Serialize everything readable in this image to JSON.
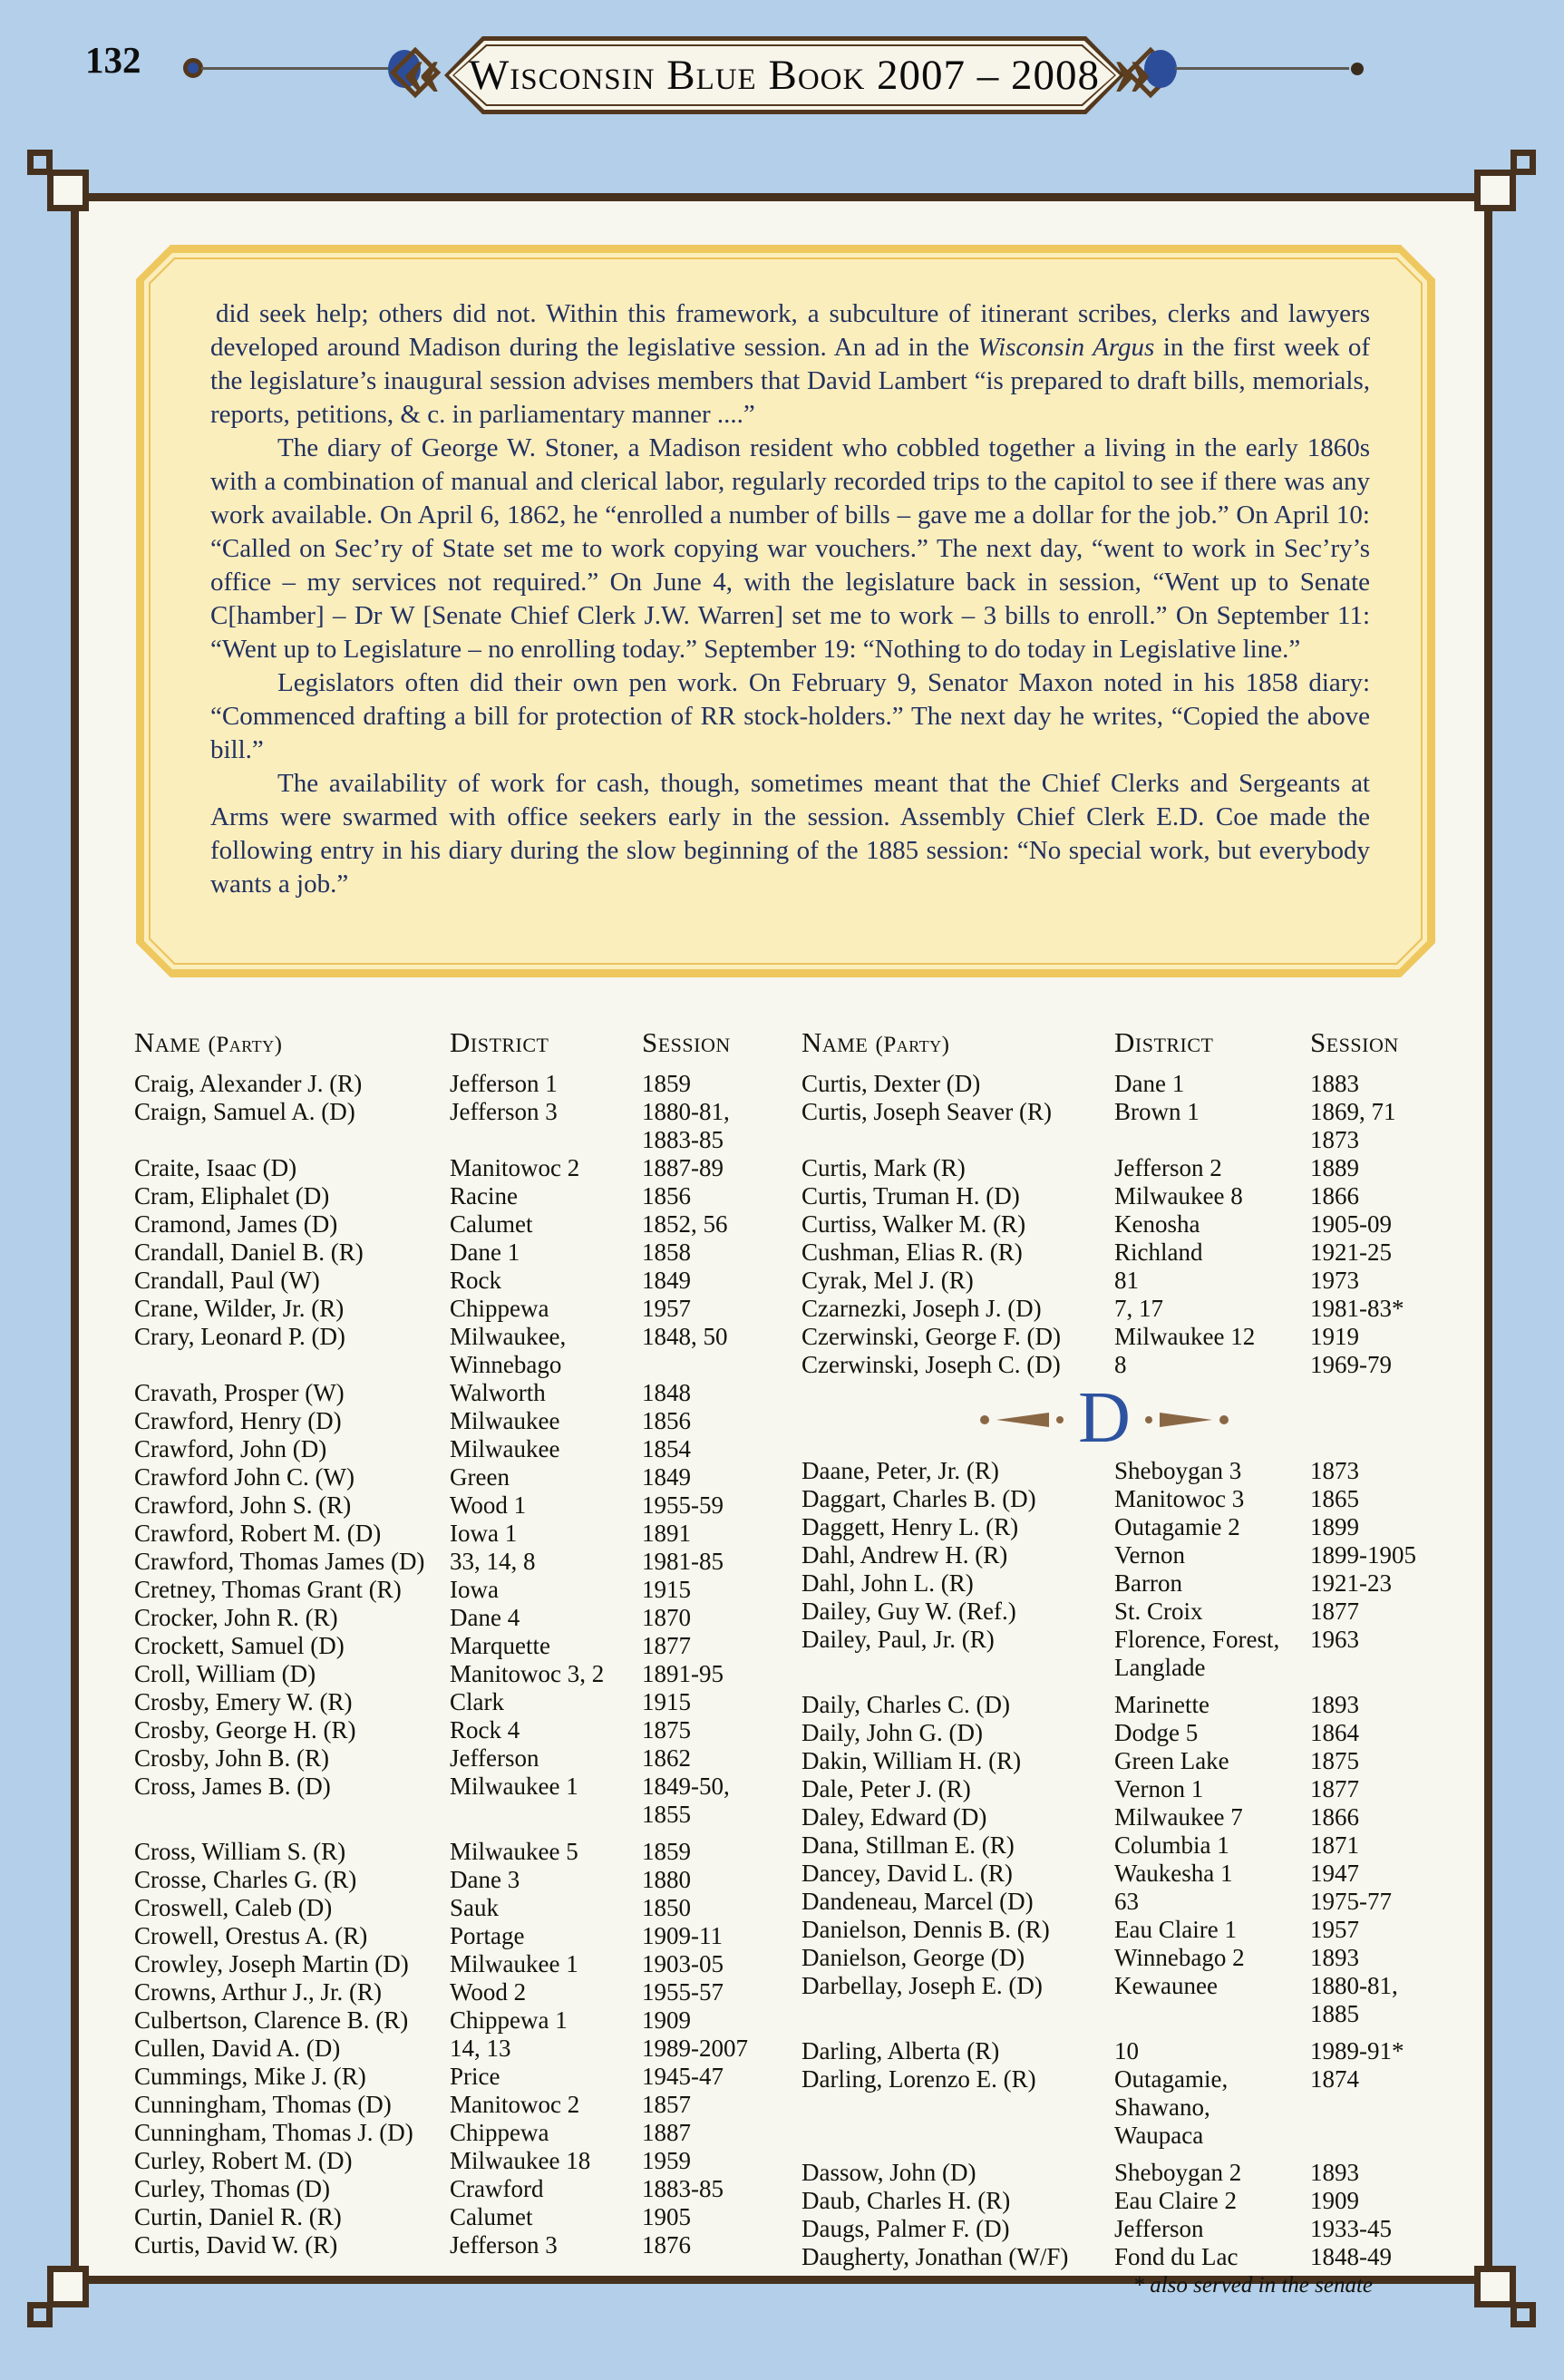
{
  "page": {
    "number": "132"
  },
  "header": {
    "title": "Wisconsin Blue Book 2007 – 2008",
    "chevron_left": "«",
    "chevron_right": "»"
  },
  "colors": {
    "page_bg": "#b3cfe9",
    "frame_brown": "#46311e",
    "box_border_gold": "#eec85e",
    "box_fill": "#fbeebd",
    "intro_text_navy": "#22315f",
    "ornament_blue": "#2c4d9a",
    "divider_letter_blue": "#2d53a0"
  },
  "intro": {
    "paragraphs": [
      {
        "indent": false,
        "segments": [
          {
            "t": " did seek help; others did not.  Within this framework, a subculture of itinerant scribes, clerks and lawyers developed around Madison during the legislative session.  An ad in the "
          },
          {
            "t": "Wisconsin Argus",
            "i": true
          },
          {
            "t": " in the first week of the legislature’s inaugural session advises members that David Lambert “is prepared to draft bills, memorials, reports, petitions, & c. in parliamentary manner ....”"
          }
        ]
      },
      {
        "indent": true,
        "segments": [
          {
            "t": "The diary of George W. Stoner, a Madison resident who cobbled together a living in the early 1860s with a combination of manual and clerical labor, regularly recorded trips to the capitol to see if there was any work available.  On April 6, 1862, he “enrolled a number of bills – gave me a dollar for the job.”  On April 10: “Called on Sec’ry of State set me to work copying war vouchers.”  The next day, “went to work in Sec’ry’s office – my services not required.”  On June 4, with the legislature back in session, “Went up to Senate C[hamber] – Dr W [Senate Chief Clerk J.W. Warren] set me to work – 3 bills to enroll.”  On September 11: “Went up to Legislature – no enrolling today.”  September 19: “Nothing to do today in Legislative line.”"
          }
        ]
      },
      {
        "indent": true,
        "segments": [
          {
            "t": "Legislators often did their own pen work.  On February 9, Senator Maxon noted in his 1858 diary: “Commenced drafting a bill for protection of RR stock-holders.”  The next day he writes, “Copied the above bill.”"
          }
        ]
      },
      {
        "indent": true,
        "segments": [
          {
            "t": "The availability of work for cash, though, sometimes meant that the Chief Clerks and Sergeants at Arms were swarmed with office seekers early in the session.  Assembly Chief Clerk E.D. Coe made the following entry in his diary during the slow beginning of the 1885 session: “No special work, but everybody wants a job.”"
          }
        ]
      }
    ]
  },
  "table": {
    "headers": {
      "name": "Name",
      "party": "(Party)",
      "district": "District",
      "session": "Session"
    },
    "left_rows": [
      {
        "name": "Craig, Alexander J. (R)",
        "district": "Jefferson 1",
        "session": "1859"
      },
      {
        "name": "Craign, Samuel A. (D)",
        "district": "Jefferson 3",
        "session": "1880-81,\n1883-85"
      },
      {
        "name": "Craite, Isaac (D)",
        "district": "Manitowoc 2",
        "session": "1887-89"
      },
      {
        "name": "Cram, Eliphalet (D)",
        "district": "Racine",
        "session": "1856"
      },
      {
        "name": "Cramond, James (D)",
        "district": "Calumet",
        "session": "1852, 56"
      },
      {
        "name": "Crandall, Daniel B. (R)",
        "district": "Dane 1",
        "session": "1858"
      },
      {
        "name": "Crandall, Paul (W)",
        "district": "Rock",
        "session": "1849"
      },
      {
        "name": "Crane, Wilder, Jr. (R)",
        "district": "Chippewa",
        "session": "1957"
      },
      {
        "name": "Crary, Leonard P. (D)",
        "district": "Milwaukee,\nWinnebago",
        "session": "1848, 50"
      },
      {
        "name": "Cravath, Prosper (W)",
        "district": "Walworth",
        "session": "1848"
      },
      {
        "name": "Crawford, Henry (D)",
        "district": "Milwaukee",
        "session": "1856"
      },
      {
        "name": "Crawford, John (D)",
        "district": "Milwaukee",
        "session": "1854"
      },
      {
        "name": "Crawford John C. (W)",
        "district": "Green",
        "session": "1849"
      },
      {
        "name": "Crawford, John S. (R)",
        "district": "Wood 1",
        "session": "1955-59"
      },
      {
        "name": "Crawford, Robert M. (D)",
        "district": "Iowa 1",
        "session": "1891"
      },
      {
        "name": "Crawford, Thomas James (D)",
        "district": "33, 14, 8",
        "session": "1981-85"
      },
      {
        "name": "Cretney, Thomas Grant (R)",
        "district": "Iowa",
        "session": "1915"
      },
      {
        "name": "Crocker, John R. (R)",
        "district": "Dane 4",
        "session": "1870"
      },
      {
        "name": "Crockett, Samuel (D)",
        "district": "Marquette",
        "session": "1877"
      },
      {
        "name": "Croll, William (D)",
        "district": "Manitowoc 3, 2",
        "session": "1891-95"
      },
      {
        "name": "Crosby, Emery W. (R)",
        "district": "Clark",
        "session": "1915"
      },
      {
        "name": "Crosby, George H. (R)",
        "district": "Rock 4",
        "session": "1875"
      },
      {
        "name": "Crosby, John B. (R)",
        "district": "Jefferson",
        "session": "1862"
      },
      {
        "name": "Cross, James B. (D)",
        "district": "Milwaukee 1",
        "session": "1849-50,\n1855"
      },
      {
        "name": "Cross, William S. (R)",
        "district": "Milwaukee 5",
        "session": "1859",
        "gap": true
      },
      {
        "name": "Crosse, Charles G. (R)",
        "district": "Dane 3",
        "session": "1880"
      },
      {
        "name": "Croswell, Caleb (D)",
        "district": "Sauk",
        "session": "1850"
      },
      {
        "name": "Crowell, Orestus A. (R)",
        "district": "Portage",
        "session": "1909-11"
      },
      {
        "name": "Crowley, Joseph Martin (D)",
        "district": "Milwaukee 1",
        "session": "1903-05"
      },
      {
        "name": "Crowns, Arthur J., Jr. (R)",
        "district": "Wood 2",
        "session": "1955-57"
      },
      {
        "name": "Culbertson, Clarence B. (R)",
        "district": "Chippewa 1",
        "session": "1909"
      },
      {
        "name": "Cullen, David A. (D)",
        "district": "14, 13",
        "session": "1989-2007"
      },
      {
        "name": "Cummings, Mike J. (R)",
        "district": "Price",
        "session": "1945-47"
      },
      {
        "name": "Cunningham, Thomas (D)",
        "district": "Manitowoc 2",
        "session": "1857"
      },
      {
        "name": "Cunningham, Thomas J. (D)",
        "district": "Chippewa",
        "session": "1887"
      },
      {
        "name": "Curley, Robert M. (D)",
        "district": "Milwaukee 18",
        "session": "1959"
      },
      {
        "name": "Curley, Thomas (D)",
        "district": "Crawford",
        "session": "1883-85"
      },
      {
        "name": "Curtin, Daniel R. (R)",
        "district": "Calumet",
        "session": "1905"
      },
      {
        "name": "Curtis, David W. (R)",
        "district": "Jefferson 3",
        "session": "1876"
      }
    ],
    "right_rows": [
      {
        "name": "Curtis, Dexter (D)",
        "district": "Dane 1",
        "session": "1883"
      },
      {
        "name": "Curtis, Joseph Seaver (R)",
        "district": "Brown 1",
        "session": "1869, 71\n1873"
      },
      {
        "name": "Curtis, Mark (R)",
        "district": "Jefferson 2",
        "session": "1889"
      },
      {
        "name": "Curtis, Truman H. (D)",
        "district": "Milwaukee 8",
        "session": "1866"
      },
      {
        "name": "Curtiss, Walker M. (R)",
        "district": "Kenosha",
        "session": "1905-09"
      },
      {
        "name": "Cushman, Elias R. (R)",
        "district": "Richland",
        "session": "1921-25"
      },
      {
        "name": "Cyrak, Mel J. (R)",
        "district": "81",
        "session": "1973"
      },
      {
        "name": "Czarnezki, Joseph J. (D)",
        "district": "7, 17",
        "session": "1981-83*"
      },
      {
        "name": "Czerwinski, George F. (D)",
        "district": "Milwaukee 12",
        "session": "1919"
      },
      {
        "name": "Czerwinski, Joseph C. (D)",
        "district": "8",
        "session": "1969-79"
      },
      {
        "divider": true,
        "letter": "D"
      },
      {
        "name": "Daane, Peter, Jr. (R)",
        "district": "Sheboygan 3",
        "session": "1873"
      },
      {
        "name": "Daggart, Charles B. (D)",
        "district": "Manitowoc 3",
        "session": "1865"
      },
      {
        "name": "Daggett, Henry L. (R)",
        "district": "Outagamie 2",
        "session": "1899"
      },
      {
        "name": "Dahl, Andrew H. (R)",
        "district": "Vernon",
        "session": "1899-1905"
      },
      {
        "name": "Dahl, John L. (R)",
        "district": "Barron",
        "session": "1921-23"
      },
      {
        "name": "Dailey, Guy W. (Ref.)",
        "district": "St. Croix",
        "session": "1877"
      },
      {
        "name": "Dailey, Paul, Jr. (R)",
        "district": "Florence, Forest,\nLanglade",
        "session": "1963"
      },
      {
        "name": "Daily, Charles C. (D)",
        "district": "Marinette",
        "session": "1893",
        "gap": true
      },
      {
        "name": "Daily, John G. (D)",
        "district": "Dodge 5",
        "session": "1864"
      },
      {
        "name": "Dakin, William H. (R)",
        "district": "Green Lake",
        "session": "1875"
      },
      {
        "name": "Dale, Peter J. (R)",
        "district": "Vernon 1",
        "session": "1877"
      },
      {
        "name": "Daley, Edward (D)",
        "district": "Milwaukee 7",
        "session": "1866"
      },
      {
        "name": "Dana, Stillman E. (R)",
        "district": "Columbia 1",
        "session": "1871"
      },
      {
        "name": "Dancey, David L. (R)",
        "district": "Waukesha 1",
        "session": "1947"
      },
      {
        "name": "Dandeneau, Marcel (D)",
        "district": "63",
        "session": "1975-77"
      },
      {
        "name": "Danielson, Dennis B. (R)",
        "district": "Eau Claire 1",
        "session": "1957"
      },
      {
        "name": "Danielson, George (D)",
        "district": "Winnebago 2",
        "session": "1893"
      },
      {
        "name": "Darbellay, Joseph E. (D)",
        "district": "Kewaunee",
        "session": "1880-81,\n1885"
      },
      {
        "name": "Darling, Alberta (R)",
        "district": "10",
        "session": "1989-91*",
        "gap": true
      },
      {
        "name": "Darling, Lorenzo E. (R)",
        "district": "Outagamie,\nShawano, Waupaca",
        "session": "1874"
      },
      {
        "name": "Dassow, John (D)",
        "district": "Sheboygan 2",
        "session": "1893",
        "gap": true
      },
      {
        "name": "Daub, Charles H. (R)",
        "district": "Eau Claire 2",
        "session": "1909"
      },
      {
        "name": "Daugs, Palmer F. (D)",
        "district": "Jefferson",
        "session": "1933-45"
      },
      {
        "name": "Daugherty, Jonathan (W/F)",
        "district": "Fond du Lac",
        "session": "1848-49"
      }
    ],
    "footnote": "* also served in the senate"
  }
}
